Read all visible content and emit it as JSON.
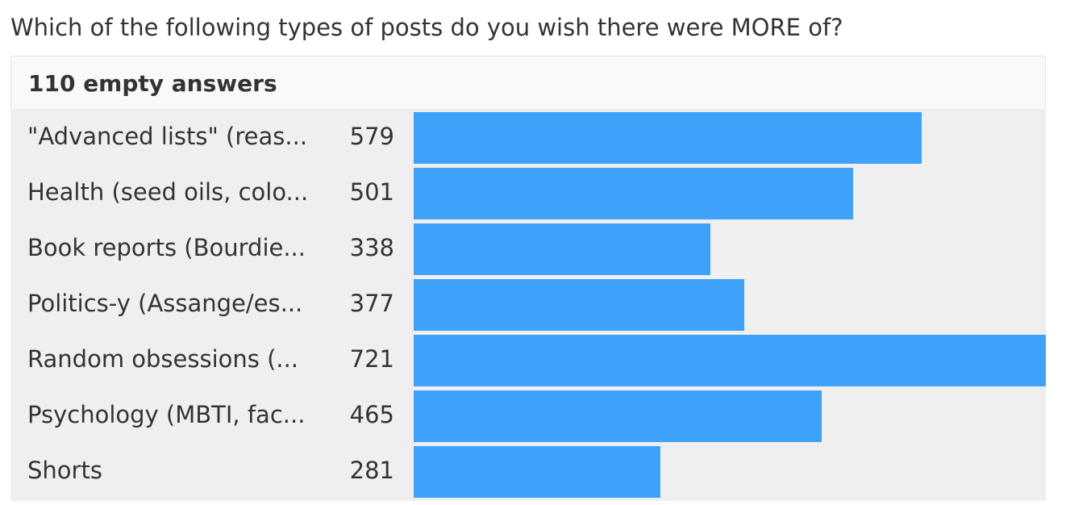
{
  "question": "Which of the following types of posts do you wish there were MORE of?",
  "summary": "110 empty answers",
  "colors": {
    "bar": "#3ea2fb",
    "chart_background": "#efefef",
    "text": "#333333"
  },
  "chart_data": {
    "type": "bar",
    "orientation": "horizontal",
    "categories": [
      "\"Advanced lists\" (reas...",
      "Health (seed oils, colo...",
      "Book reports (Bourdie...",
      "Politics-y (Assange/es...",
      "Random obsessions (...",
      "Psychology (MBTI, fac...",
      "Shorts"
    ],
    "values": [
      579,
      501,
      338,
      377,
      721,
      465,
      281
    ],
    "value_labels": [
      "579",
      "501",
      "338",
      "377",
      "721",
      "465",
      "281"
    ],
    "xlim": [
      0,
      721
    ],
    "grid": false,
    "legend": "none"
  }
}
